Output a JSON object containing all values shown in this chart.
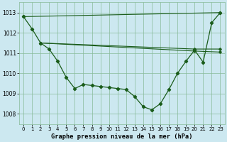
{
  "title": "Graphe pression niveau de la mer (hPa)",
  "xlim": [
    -0.5,
    23.5
  ],
  "ylim": [
    1007.5,
    1013.5
  ],
  "yticks": [
    1008,
    1009,
    1010,
    1011,
    1012,
    1013
  ],
  "xtick_labels": [
    "0",
    "1",
    "2",
    "3",
    "4",
    "5",
    "6",
    "7",
    "8",
    "9",
    "10",
    "11",
    "12",
    "13",
    "14",
    "15",
    "16",
    "17",
    "18",
    "19",
    "20",
    "21",
    "22",
    "23"
  ],
  "xtick_pos": [
    0,
    1,
    2,
    3,
    4,
    5,
    6,
    7,
    8,
    9,
    10,
    11,
    12,
    13,
    14,
    15,
    16,
    17,
    18,
    19,
    20,
    21,
    22,
    23
  ],
  "background_color": "#cce8f0",
  "grid_color": "#88bb99",
  "line_color": "#1a5c1a",
  "main_series_x": [
    0,
    1,
    2,
    3,
    4,
    5,
    6,
    7,
    8,
    9,
    10,
    11,
    12,
    13,
    14,
    15,
    16,
    17,
    18,
    19,
    20,
    21,
    22,
    23
  ],
  "main_series_y": [
    1012.8,
    1012.2,
    1011.5,
    1011.2,
    1010.6,
    1009.8,
    1009.25,
    1009.45,
    1009.4,
    1009.35,
    1009.3,
    1009.25,
    1009.2,
    1008.85,
    1008.35,
    1008.2,
    1008.5,
    1009.2,
    1010.0,
    1010.6,
    1011.15,
    1010.55,
    1012.5,
    1013.0
  ],
  "extra_lines": [
    {
      "x": [
        0,
        23
      ],
      "y": [
        1012.8,
        1013.0
      ]
    },
    {
      "x": [
        2,
        20,
        23
      ],
      "y": [
        1011.5,
        1011.2,
        1011.2
      ]
    },
    {
      "x": [
        2,
        20,
        23
      ],
      "y": [
        1011.5,
        1011.1,
        1011.05
      ]
    }
  ]
}
